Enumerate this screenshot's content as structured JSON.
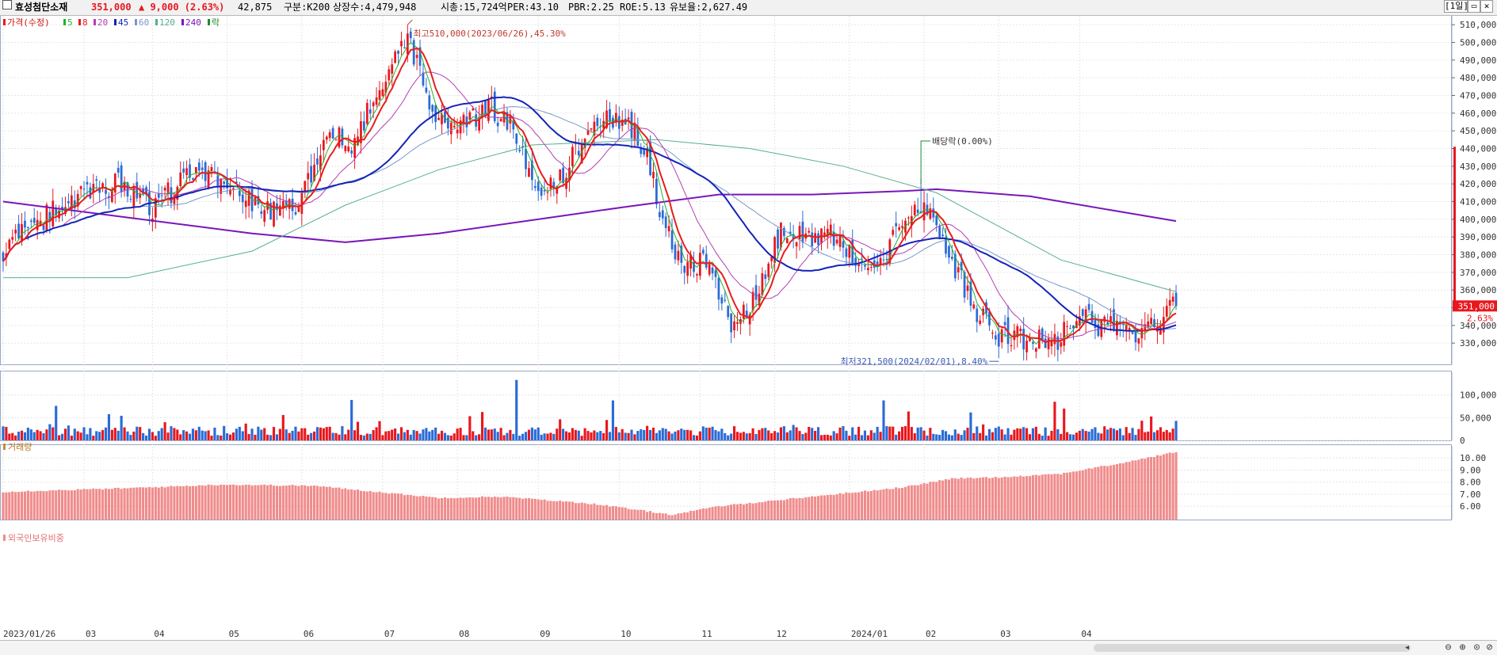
{
  "header": {
    "name": "효성첨단소재",
    "price": "351,000",
    "change": "▲ 9,000 (2.63%)",
    "volume": "42,875",
    "market": "구분:K200",
    "shares": "상장수:4,479,948",
    "cap": "시총:15,724억",
    "per": "PER:43.10",
    "pbr": "PBR:2.25",
    "roe": "ROE:5.13",
    "float": "유보율:2,627.49",
    "period": "[1일]"
  },
  "legend": {
    "price_label": "가격(수정)",
    "ma": [
      "5",
      "8",
      "20",
      "45",
      "60",
      "120",
      "240"
    ],
    "ex_label": "락"
  },
  "panels": {
    "volume_label": "거래량",
    "foreign_label": "외국인보유비중"
  },
  "annotations": {
    "high": "최고510,000(2023/06/26),45.30%",
    "low": "최저321,500(2024/02/01),8.40%",
    "dividend": "배당락(0.00%)",
    "last_price": "351,000",
    "last_pct": "2.63%"
  },
  "chart_data": {
    "type": "candlestick",
    "price_axis": {
      "ticks": [
        "510,000",
        "500,000",
        "490,000",
        "480,000",
        "470,000",
        "460,000",
        "450,000",
        "440,000",
        "430,000",
        "420,000",
        "410,000",
        "400,000",
        "390,000",
        "380,000",
        "370,000",
        "360,000",
        "350,000",
        "340,000",
        "330,000"
      ],
      "range": [
        318000,
        515000
      ]
    },
    "volume_axis": {
      "ticks": [
        "100,000",
        "50,000",
        "0"
      ],
      "range": [
        0,
        150000
      ]
    },
    "foreign_axis": {
      "ticks": [
        "10.00",
        "9.00",
        "8.00",
        "7.00",
        "6.00"
      ],
      "range": [
        4.9,
        11.0
      ]
    },
    "x_labels": [
      "2023/01/26",
      "03",
      "04",
      "05",
      "06",
      "07",
      "08",
      "09",
      "10",
      "11",
      "12",
      "2024/01",
      "02",
      "03",
      "04"
    ],
    "close_anchors": [
      {
        "t": 0,
        "v": 382000
      },
      {
        "t": 20,
        "v": 410000
      },
      {
        "t": 38,
        "v": 420000
      },
      {
        "t": 48,
        "v": 405000
      },
      {
        "t": 62,
        "v": 430000
      },
      {
        "t": 72,
        "v": 418000
      },
      {
        "t": 80,
        "v": 410000
      },
      {
        "t": 88,
        "v": 402000
      },
      {
        "t": 96,
        "v": 412000
      },
      {
        "t": 106,
        "v": 450000
      },
      {
        "t": 112,
        "v": 440000
      },
      {
        "t": 124,
        "v": 488000
      },
      {
        "t": 130,
        "v": 505000
      },
      {
        "t": 138,
        "v": 460000
      },
      {
        "t": 146,
        "v": 450000
      },
      {
        "t": 156,
        "v": 465000
      },
      {
        "t": 164,
        "v": 450000
      },
      {
        "t": 172,
        "v": 418000
      },
      {
        "t": 180,
        "v": 425000
      },
      {
        "t": 188,
        "v": 450000
      },
      {
        "t": 194,
        "v": 460000
      },
      {
        "t": 200,
        "v": 455000
      },
      {
        "t": 206,
        "v": 440000
      },
      {
        "t": 212,
        "v": 400000
      },
      {
        "t": 218,
        "v": 375000
      },
      {
        "t": 226,
        "v": 375000
      },
      {
        "t": 234,
        "v": 340000
      },
      {
        "t": 240,
        "v": 348000
      },
      {
        "t": 250,
        "v": 392000
      },
      {
        "t": 258,
        "v": 390000
      },
      {
        "t": 266,
        "v": 392000
      },
      {
        "t": 274,
        "v": 375000
      },
      {
        "t": 282,
        "v": 380000
      },
      {
        "t": 290,
        "v": 395000
      },
      {
        "t": 296,
        "v": 412000
      },
      {
        "t": 304,
        "v": 380000
      },
      {
        "t": 312,
        "v": 350000
      },
      {
        "t": 320,
        "v": 335000
      },
      {
        "t": 330,
        "v": 333000
      },
      {
        "t": 338,
        "v": 330000
      },
      {
        "t": 346,
        "v": 345000
      },
      {
        "t": 352,
        "v": 340000
      },
      {
        "t": 360,
        "v": 342000
      },
      {
        "t": 366,
        "v": 334000
      },
      {
        "t": 370,
        "v": 342000
      },
      {
        "t": 377,
        "v": 351000
      }
    ],
    "ma240": [
      {
        "t": 0,
        "v": 410000
      },
      {
        "t": 40,
        "v": 401000
      },
      {
        "t": 80,
        "v": 392000
      },
      {
        "t": 110,
        "v": 387000
      },
      {
        "t": 140,
        "v": 392000
      },
      {
        "t": 180,
        "v": 402000
      },
      {
        "t": 200,
        "v": 407000
      },
      {
        "t": 230,
        "v": 414000
      },
      {
        "t": 260,
        "v": 414000
      },
      {
        "t": 290,
        "v": 416000
      },
      {
        "t": 300,
        "v": 417000
      },
      {
        "t": 330,
        "v": 413000
      },
      {
        "t": 360,
        "v": 404000
      },
      {
        "t": 377,
        "v": 399000
      }
    ],
    "ma120": [
      {
        "t": 0,
        "v": 367000
      },
      {
        "t": 40,
        "v": 367000
      },
      {
        "t": 80,
        "v": 382000
      },
      {
        "t": 110,
        "v": 408000
      },
      {
        "t": 140,
        "v": 428000
      },
      {
        "t": 170,
        "v": 442000
      },
      {
        "t": 210,
        "v": 445000
      },
      {
        "t": 240,
        "v": 440000
      },
      {
        "t": 270,
        "v": 430000
      },
      {
        "t": 300,
        "v": 415000
      },
      {
        "t": 340,
        "v": 377000
      },
      {
        "t": 377,
        "v": 359000
      }
    ],
    "foreign_anchors": [
      {
        "t": 0,
        "v": 7.2
      },
      {
        "t": 40,
        "v": 7.5
      },
      {
        "t": 70,
        "v": 7.8
      },
      {
        "t": 100,
        "v": 7.7
      },
      {
        "t": 140,
        "v": 6.7
      },
      {
        "t": 160,
        "v": 6.8
      },
      {
        "t": 190,
        "v": 6.2
      },
      {
        "t": 215,
        "v": 5.3
      },
      {
        "t": 230,
        "v": 6.0
      },
      {
        "t": 260,
        "v": 6.8
      },
      {
        "t": 290,
        "v": 7.6
      },
      {
        "t": 305,
        "v": 8.3
      },
      {
        "t": 320,
        "v": 8.4
      },
      {
        "t": 340,
        "v": 8.7
      },
      {
        "t": 360,
        "v": 9.6
      },
      {
        "t": 377,
        "v": 10.5
      }
    ],
    "high": {
      "t": 130,
      "v": 510000
    },
    "low": {
      "t": 320,
      "v": 321500
    },
    "dividend_t": 295,
    "n_bars": 378
  },
  "colors": {
    "up": "#e8171d",
    "down": "#2a6bd6",
    "ma5": "#22b22b",
    "ma8": "#e81d1d",
    "ma20": "#b33fb3",
    "ma45": "#1424b8",
    "ma60": "#7898c8",
    "ma120": "#55b08c",
    "ma240": "#7a16b8",
    "foreign": "#f08c8c"
  }
}
